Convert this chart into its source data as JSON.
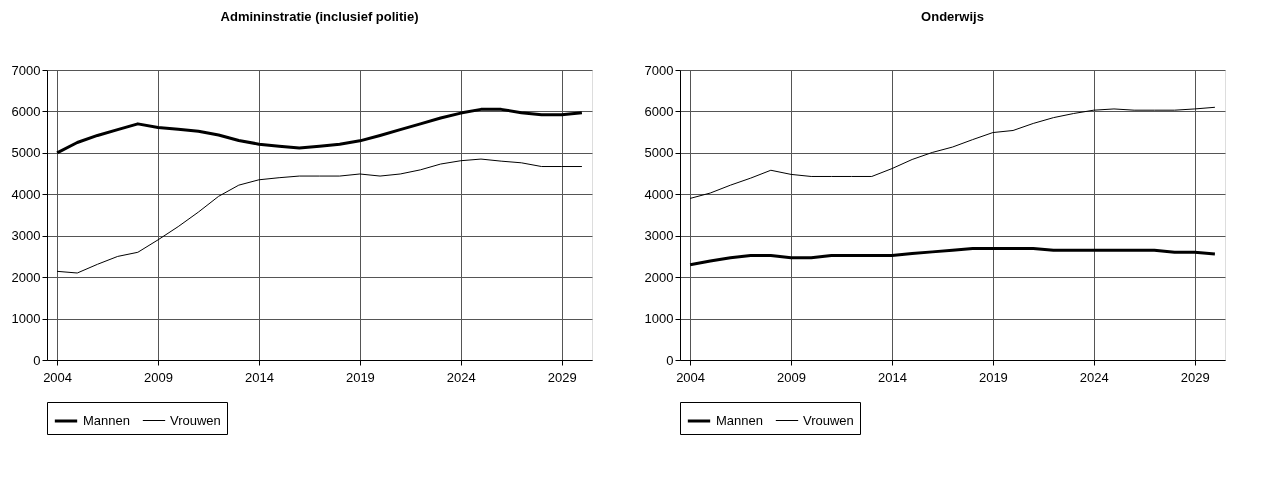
{
  "chart_data": [
    {
      "type": "line",
      "title": "Admininstratie (inclusief politie)",
      "x": [
        2004,
        2005,
        2006,
        2007,
        2008,
        2009,
        2010,
        2011,
        2012,
        2013,
        2014,
        2015,
        2016,
        2017,
        2018,
        2019,
        2020,
        2021,
        2022,
        2023,
        2024,
        2025,
        2026,
        2027,
        2028,
        2029,
        2030
      ],
      "series": [
        {
          "name": "Mannen",
          "color": "#000000",
          "values": [
            5000,
            5250,
            5420,
            5560,
            5700,
            5610,
            5570,
            5520,
            5430,
            5300,
            5210,
            5160,
            5120,
            5160,
            5210,
            5290,
            5420,
            5560,
            5700,
            5840,
            5960,
            6050,
            6050,
            5970,
            5920,
            5920,
            5970
          ]
        },
        {
          "name": "Vrouwen",
          "color": "#000000",
          "values": [
            2140,
            2100,
            2310,
            2500,
            2600,
            2900,
            3220,
            3570,
            3950,
            4220,
            4350,
            4400,
            4440,
            4440,
            4440,
            4490,
            4440,
            4490,
            4590,
            4730,
            4810,
            4850,
            4800,
            4760,
            4670,
            4670,
            4670
          ]
        }
      ],
      "xlim": [
        2003.5,
        2030.5
      ],
      "xticks": [
        2004,
        2009,
        2014,
        2019,
        2024,
        2029
      ],
      "ylim": [
        0,
        7000
      ],
      "yticks": [
        0,
        1000,
        2000,
        3000,
        4000,
        5000,
        6000,
        7000
      ],
      "grid": true,
      "legend": "bottom",
      "marker": "none",
      "line_style": "solid"
    },
    {
      "type": "line",
      "title": "Onderwijs",
      "x": [
        2004,
        2005,
        2006,
        2007,
        2008,
        2009,
        2010,
        2011,
        2012,
        2013,
        2014,
        2015,
        2016,
        2017,
        2018,
        2019,
        2020,
        2021,
        2022,
        2023,
        2024,
        2025,
        2026,
        2027,
        2028,
        2029,
        2030
      ],
      "series": [
        {
          "name": "Mannen",
          "color": "#000000",
          "values": [
            2300,
            2390,
            2470,
            2520,
            2520,
            2470,
            2470,
            2520,
            2520,
            2520,
            2520,
            2570,
            2610,
            2650,
            2690,
            2690,
            2690,
            2690,
            2650,
            2650,
            2650,
            2650,
            2650,
            2650,
            2600,
            2600,
            2560
          ]
        },
        {
          "name": "Vrouwen",
          "color": "#000000",
          "values": [
            3900,
            4030,
            4220,
            4390,
            4580,
            4480,
            4430,
            4430,
            4430,
            4430,
            4620,
            4840,
            5010,
            5140,
            5320,
            5490,
            5540,
            5710,
            5850,
            5950,
            6030,
            6060,
            6030,
            6030,
            6030,
            6060,
            6100
          ]
        }
      ],
      "xlim": [
        2003.5,
        2030.5
      ],
      "xticks": [
        2004,
        2009,
        2014,
        2019,
        2024,
        2029
      ],
      "ylim": [
        0,
        7000
      ],
      "yticks": [
        0,
        1000,
        2000,
        3000,
        4000,
        5000,
        6000,
        7000
      ],
      "grid": true,
      "legend": "bottom",
      "marker": "none",
      "line_style": "solid"
    }
  ]
}
